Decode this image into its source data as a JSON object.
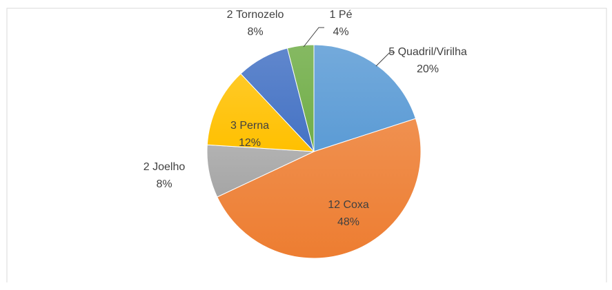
{
  "chart_data": {
    "type": "pie",
    "categories": [
      "Quadril/Virilha",
      "Coxa",
      "Joelho",
      "Perna",
      "Tornozelo",
      "Pé"
    ],
    "counts": [
      5,
      12,
      2,
      3,
      2,
      1
    ],
    "values": [
      20,
      48,
      8,
      12,
      8,
      4
    ],
    "value_labels": [
      "20%",
      "48%",
      "8%",
      "12%",
      "8%",
      "4%"
    ],
    "colors": [
      "#5b9bd5",
      "#ed7d31",
      "#a5a5a5",
      "#ffc000",
      "#4472c4",
      "#70ad47"
    ]
  }
}
